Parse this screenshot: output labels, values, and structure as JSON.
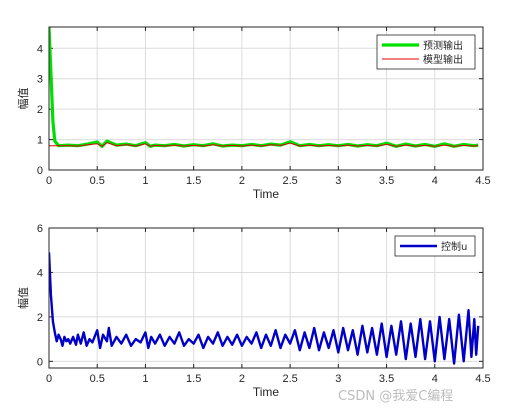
{
  "chart_data": [
    {
      "type": "line",
      "xlabel": "Time",
      "ylabel": "幅值",
      "xlim": [
        0,
        4.5
      ],
      "ylim": [
        0,
        4.7
      ],
      "xticks": [
        0,
        0.5,
        1,
        1.5,
        2,
        2.5,
        3,
        3.5,
        4,
        4.5
      ],
      "xticklabels": [
        "0",
        "0.5",
        "1",
        "1.5",
        "2",
        "2.5",
        "3",
        "3.5",
        "4",
        "4.5"
      ],
      "yticks": [
        0,
        1,
        2,
        3,
        4
      ],
      "yticklabels": [
        "0",
        "1",
        "2",
        "3",
        "4"
      ],
      "grid": true,
      "legend_position": "top-right",
      "series": [
        {
          "name": "预测输出",
          "color": "#00e000",
          "points": [
            [
              0,
              4.7
            ],
            [
              0.02,
              3.2
            ],
            [
              0.04,
              1.6
            ],
            [
              0.06,
              0.95
            ],
            [
              0.1,
              0.8
            ],
            [
              0.2,
              0.82
            ],
            [
              0.3,
              0.8
            ],
            [
              0.4,
              0.85
            ],
            [
              0.5,
              0.92
            ],
            [
              0.55,
              0.78
            ],
            [
              0.6,
              0.95
            ],
            [
              0.7,
              0.82
            ],
            [
              0.8,
              0.85
            ],
            [
              0.9,
              0.8
            ],
            [
              1.0,
              0.9
            ],
            [
              1.05,
              0.78
            ],
            [
              1.1,
              0.82
            ],
            [
              1.2,
              0.8
            ],
            [
              1.3,
              0.84
            ],
            [
              1.4,
              0.79
            ],
            [
              1.5,
              0.83
            ],
            [
              1.6,
              0.8
            ],
            [
              1.7,
              0.86
            ],
            [
              1.8,
              0.79
            ],
            [
              1.9,
              0.82
            ],
            [
              2.0,
              0.8
            ],
            [
              2.1,
              0.84
            ],
            [
              2.2,
              0.8
            ],
            [
              2.3,
              0.85
            ],
            [
              2.4,
              0.82
            ],
            [
              2.5,
              0.93
            ],
            [
              2.6,
              0.8
            ],
            [
              2.7,
              0.84
            ],
            [
              2.8,
              0.8
            ],
            [
              2.9,
              0.83
            ],
            [
              3.0,
              0.8
            ],
            [
              3.1,
              0.84
            ],
            [
              3.2,
              0.79
            ],
            [
              3.3,
              0.83
            ],
            [
              3.4,
              0.8
            ],
            [
              3.5,
              0.88
            ],
            [
              3.6,
              0.78
            ],
            [
              3.7,
              0.85
            ],
            [
              3.8,
              0.79
            ],
            [
              3.9,
              0.84
            ],
            [
              4.0,
              0.78
            ],
            [
              4.1,
              0.86
            ],
            [
              4.2,
              0.78
            ],
            [
              4.3,
              0.84
            ],
            [
              4.4,
              0.8
            ],
            [
              4.45,
              0.82
            ]
          ]
        },
        {
          "name": "模型输出",
          "color": "#e00000",
          "points": [
            [
              0,
              0.8
            ],
            [
              0.1,
              0.8
            ],
            [
              0.2,
              0.8
            ],
            [
              0.3,
              0.79
            ],
            [
              0.4,
              0.83
            ],
            [
              0.5,
              0.86
            ],
            [
              0.55,
              0.78
            ],
            [
              0.6,
              0.9
            ],
            [
              0.7,
              0.8
            ],
            [
              0.8,
              0.83
            ],
            [
              0.9,
              0.79
            ],
            [
              1.0,
              0.86
            ],
            [
              1.05,
              0.78
            ],
            [
              1.1,
              0.81
            ],
            [
              1.2,
              0.79
            ],
            [
              1.3,
              0.82
            ],
            [
              1.4,
              0.79
            ],
            [
              1.5,
              0.81
            ],
            [
              1.6,
              0.79
            ],
            [
              1.7,
              0.83
            ],
            [
              1.8,
              0.79
            ],
            [
              1.9,
              0.81
            ],
            [
              2.0,
              0.79
            ],
            [
              2.1,
              0.82
            ],
            [
              2.2,
              0.79
            ],
            [
              2.3,
              0.83
            ],
            [
              2.4,
              0.81
            ],
            [
              2.5,
              0.88
            ],
            [
              2.6,
              0.79
            ],
            [
              2.7,
              0.82
            ],
            [
              2.8,
              0.79
            ],
            [
              2.9,
              0.81
            ],
            [
              3.0,
              0.79
            ],
            [
              3.1,
              0.82
            ],
            [
              3.2,
              0.79
            ],
            [
              3.3,
              0.81
            ],
            [
              3.4,
              0.79
            ],
            [
              3.5,
              0.84
            ],
            [
              3.6,
              0.78
            ],
            [
              3.7,
              0.82
            ],
            [
              3.8,
              0.79
            ],
            [
              3.9,
              0.81
            ],
            [
              4.0,
              0.78
            ],
            [
              4.1,
              0.82
            ],
            [
              4.2,
              0.78
            ],
            [
              4.3,
              0.81
            ],
            [
              4.4,
              0.79
            ],
            [
              4.45,
              0.8
            ]
          ]
        }
      ]
    },
    {
      "type": "line",
      "xlabel": "Time",
      "ylabel": "幅值",
      "xlim": [
        0,
        4.5
      ],
      "ylim": [
        -0.3,
        6
      ],
      "xticks": [
        0,
        0.5,
        1,
        1.5,
        2,
        2.5,
        3,
        3.5,
        4,
        4.5
      ],
      "xticklabels": [
        "0",
        "0.5",
        "1",
        "1.5",
        "2",
        "2.5",
        "3",
        "3.5",
        "4",
        "4.5"
      ],
      "yticks": [
        0,
        2,
        4,
        6
      ],
      "yticklabels": [
        "0",
        "2",
        "4",
        "6"
      ],
      "grid": true,
      "legend_position": "top-right",
      "series": [
        {
          "name": "控制u",
          "color": "#0000c8",
          "points": [
            [
              0,
              4.9
            ],
            [
              0.02,
              3.0
            ],
            [
              0.04,
              1.8
            ],
            [
              0.06,
              1.3
            ],
            [
              0.08,
              0.9
            ],
            [
              0.1,
              1.2
            ],
            [
              0.12,
              1.0
            ],
            [
              0.14,
              0.7
            ],
            [
              0.16,
              1.1
            ],
            [
              0.18,
              0.9
            ],
            [
              0.2,
              1.0
            ],
            [
              0.22,
              0.8
            ],
            [
              0.25,
              1.1
            ],
            [
              0.28,
              0.75
            ],
            [
              0.3,
              1.2
            ],
            [
              0.33,
              0.8
            ],
            [
              0.36,
              1.3
            ],
            [
              0.39,
              0.7
            ],
            [
              0.42,
              1.0
            ],
            [
              0.45,
              0.85
            ],
            [
              0.5,
              1.4
            ],
            [
              0.53,
              0.6
            ],
            [
              0.56,
              1.2
            ],
            [
              0.6,
              0.9
            ],
            [
              0.62,
              1.5
            ],
            [
              0.65,
              0.7
            ],
            [
              0.7,
              1.1
            ],
            [
              0.75,
              0.8
            ],
            [
              0.8,
              1.2
            ],
            [
              0.85,
              0.7
            ],
            [
              0.9,
              1.0
            ],
            [
              0.95,
              0.85
            ],
            [
              1.0,
              1.3
            ],
            [
              1.03,
              0.6
            ],
            [
              1.06,
              1.1
            ],
            [
              1.1,
              0.8
            ],
            [
              1.15,
              1.2
            ],
            [
              1.2,
              0.7
            ],
            [
              1.25,
              1.1
            ],
            [
              1.3,
              0.8
            ],
            [
              1.35,
              1.3
            ],
            [
              1.4,
              0.7
            ],
            [
              1.45,
              1.0
            ],
            [
              1.5,
              0.8
            ],
            [
              1.55,
              1.2
            ],
            [
              1.6,
              0.6
            ],
            [
              1.65,
              1.1
            ],
            [
              1.7,
              0.8
            ],
            [
              1.75,
              1.3
            ],
            [
              1.8,
              0.7
            ],
            [
              1.85,
              1.1
            ],
            [
              1.9,
              0.75
            ],
            [
              1.95,
              1.2
            ],
            [
              2.0,
              0.7
            ],
            [
              2.05,
              1.1
            ],
            [
              2.1,
              0.8
            ],
            [
              2.15,
              1.3
            ],
            [
              2.2,
              0.6
            ],
            [
              2.25,
              1.2
            ],
            [
              2.3,
              0.7
            ],
            [
              2.35,
              1.4
            ],
            [
              2.4,
              0.6
            ],
            [
              2.45,
              1.2
            ],
            [
              2.5,
              0.8
            ],
            [
              2.55,
              1.4
            ],
            [
              2.6,
              0.5
            ],
            [
              2.65,
              1.3
            ],
            [
              2.7,
              0.6
            ],
            [
              2.75,
              1.5
            ],
            [
              2.8,
              0.5
            ],
            [
              2.85,
              1.3
            ],
            [
              2.9,
              0.6
            ],
            [
              2.95,
              1.4
            ],
            [
              3.0,
              0.4
            ],
            [
              3.05,
              1.5
            ],
            [
              3.1,
              0.5
            ],
            [
              3.15,
              1.4
            ],
            [
              3.2,
              0.3
            ],
            [
              3.25,
              1.6
            ],
            [
              3.3,
              0.4
            ],
            [
              3.35,
              1.5
            ],
            [
              3.4,
              0.3
            ],
            [
              3.45,
              1.7
            ],
            [
              3.5,
              0.2
            ],
            [
              3.55,
              1.6
            ],
            [
              3.6,
              0.3
            ],
            [
              3.65,
              1.8
            ],
            [
              3.7,
              0.1
            ],
            [
              3.75,
              1.7
            ],
            [
              3.8,
              0.2
            ],
            [
              3.85,
              1.9
            ],
            [
              3.9,
              0.1
            ],
            [
              3.95,
              1.8
            ],
            [
              4.0,
              0.0
            ],
            [
              4.05,
              2.0
            ],
            [
              4.1,
              0.1
            ],
            [
              4.15,
              1.9
            ],
            [
              4.2,
              -0.1
            ],
            [
              4.25,
              2.1
            ],
            [
              4.3,
              0.0
            ],
            [
              4.35,
              2.3
            ],
            [
              4.38,
              0.2
            ],
            [
              4.41,
              1.9
            ],
            [
              4.43,
              0.3
            ],
            [
              4.45,
              1.6
            ]
          ]
        }
      ]
    }
  ],
  "watermark": "CSDN @我爱C编程"
}
